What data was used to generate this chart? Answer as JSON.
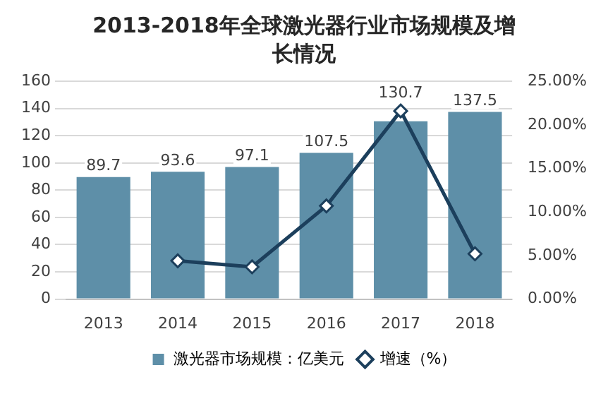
{
  "chart_data": {
    "type": "bar",
    "title": "2013-2018年全球激光器行业市场规模及增长情况",
    "categories": [
      "2013",
      "2014",
      "2015",
      "2016",
      "2017",
      "2018"
    ],
    "series": [
      {
        "name": "激光器市场规模：亿美元",
        "color": "#5e8fa8",
        "values": [
          89.7,
          93.6,
          97.1,
          107.5,
          130.7,
          137.5
        ],
        "value_labels": [
          "89.7",
          "93.6",
          "97.1",
          "107.5",
          "130.7",
          "137.5"
        ]
      },
      {
        "name": "增速（%）",
        "type": "line",
        "axis": "y2",
        "color": "#1c3f5c",
        "marker": "diamond",
        "values": [
          null,
          4.4,
          3.7,
          10.7,
          21.6,
          5.2
        ]
      }
    ],
    "ylim": [
      0,
      160
    ],
    "yticks": [
      0,
      20,
      40,
      60,
      80,
      100,
      120,
      140,
      160
    ],
    "y2lim": [
      0,
      25
    ],
    "y2ticks": [
      {
        "value": 0,
        "label": "0.00%"
      },
      {
        "value": 5,
        "label": "5.00%"
      },
      {
        "value": 10,
        "label": "10.00%"
      },
      {
        "value": 15,
        "label": "15.00%"
      },
      {
        "value": 20,
        "label": "20.00%"
      },
      {
        "value": 25,
        "label": "25.00%"
      }
    ],
    "grid": "y",
    "legend": "bottom"
  }
}
